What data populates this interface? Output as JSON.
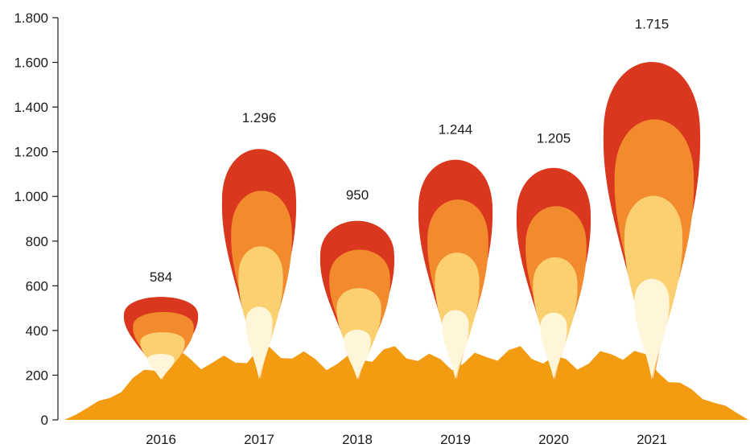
{
  "chart_data": {
    "type": "bar",
    "title": "",
    "xlabel": "",
    "ylabel": "",
    "categories": [
      "2016",
      "2017",
      "2018",
      "2019",
      "2020",
      "2021"
    ],
    "values": [
      584,
      1296,
      950,
      1244,
      1205,
      1715
    ],
    "value_labels": [
      "584",
      "1.296",
      "950",
      "1.244",
      "1.205",
      "1.715"
    ],
    "ylim": [
      0,
      1800
    ],
    "yticks": [
      0,
      200,
      400,
      600,
      800,
      1000,
      1200,
      1400,
      1600,
      1800
    ],
    "ytick_labels": [
      "0",
      "200",
      "400",
      "600",
      "800",
      "1.000",
      "1.200",
      "1.400",
      "1.600",
      "1.800"
    ],
    "grid": false,
    "mark_style": "flame",
    "colors": {
      "ground": "#f39c12",
      "flame_outer": "#d9381e",
      "flame_mid": "#f28a2e",
      "flame_inner": "#fbd070",
      "flame_core": "#fff6d9",
      "axis": "#1a1a1a",
      "text": "#1a1a1a"
    }
  }
}
